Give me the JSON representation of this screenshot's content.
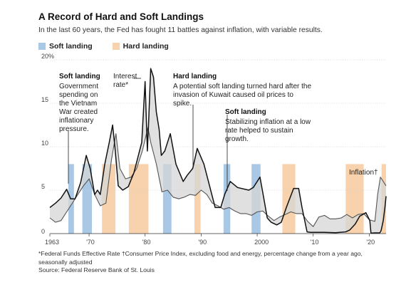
{
  "title": "A Record of Hard and Soft Landings",
  "subtitle": "In the last 60 years, the Fed has fought 11 battles against inflation, with variable results.",
  "legend": {
    "soft": {
      "label": "Soft landing",
      "color": "#a9c8e6"
    },
    "hard": {
      "label": "Hard landing",
      "color": "#f7d2ac"
    }
  },
  "footnote": "*Federal Funds Effective Rate   †Consumer Price Index, excluding food and energy, percentage change from a year ago, seasonally adjusted",
  "source": "Source: Federal Reserve Bank of St. Louis",
  "annotations": {
    "a1": {
      "head": "Soft landing",
      "lines": [
        "Government",
        "spending on",
        "the Vietnam",
        "War created",
        "inflationary",
        "pressure."
      ]
    },
    "a2": {
      "lines": [
        "Interest",
        "rate*"
      ]
    },
    "a3": {
      "head": "Hard landing",
      "lines": [
        "A potential soft landing turned hard after the",
        "invasion of Kuwait caused oil prices to",
        "spike."
      ]
    },
    "a4": {
      "head": "Soft landing",
      "lines": [
        "Stabilizing inflation at a low",
        "rate helped to sustain",
        "growth."
      ]
    },
    "a5": {
      "text": "Inflation†"
    }
  },
  "chart_data": {
    "type": "line",
    "title": "A Record of Hard and Soft Landings",
    "xlim": [
      1963,
      2023
    ],
    "ylim": [
      0,
      20
    ],
    "x_ticks": [
      {
        "v": 1963,
        "label": "1963"
      },
      {
        "v": 1970,
        "label": "'70"
      },
      {
        "v": 1980,
        "label": "'80"
      },
      {
        "v": 1990,
        "label": "'90"
      },
      {
        "v": 2000,
        "label": "2000"
      },
      {
        "v": 2010,
        "label": "'10"
      },
      {
        "v": 2020,
        "label": "'20"
      }
    ],
    "y_ticks": [
      {
        "v": 0,
        "label": "0"
      },
      {
        "v": 5,
        "label": "5"
      },
      {
        "v": 10,
        "label": "10"
      },
      {
        "v": 15,
        "label": "15"
      },
      {
        "v": 20,
        "label": "20%"
      }
    ],
    "grid": true,
    "legend_position": "top-left",
    "shaded_periods": [
      {
        "kind": "soft",
        "start": 1966.3,
        "end": 1967.3
      },
      {
        "kind": "soft",
        "start": 1968.8,
        "end": 1970.5
      },
      {
        "kind": "hard",
        "start": 1972.3,
        "end": 1974.7
      },
      {
        "kind": "hard",
        "start": 1977.1,
        "end": 1980.6
      },
      {
        "kind": "soft",
        "start": 1983.2,
        "end": 1984.7
      },
      {
        "kind": "hard",
        "start": 1988.8,
        "end": 1989.9
      },
      {
        "kind": "soft",
        "start": 1994.0,
        "end": 1995.2
      },
      {
        "kind": "soft",
        "start": 1999.0,
        "end": 2000.6
      },
      {
        "kind": "hard",
        "start": 2004.5,
        "end": 2006.8
      },
      {
        "kind": "hard",
        "start": 2015.8,
        "end": 2019.0
      },
      {
        "kind": "hard",
        "start": 2022.2,
        "end": 2023.0
      }
    ],
    "series": [
      {
        "name": "Interest rate*",
        "color": "#111111",
        "x": [
          1963,
          1964,
          1965,
          1966,
          1966.7,
          1967.5,
          1968.5,
          1969.5,
          1970.2,
          1971,
          1971.5,
          1972,
          1972.8,
          1973.6,
          1974.2,
          1974.6,
          1975.2,
          1976,
          1977,
          1978,
          1978.8,
          1979.4,
          1980.0,
          1980.4,
          1980.6,
          1981.0,
          1981.5,
          1982.0,
          1982.5,
          1982.9,
          1983.5,
          1984.5,
          1985.5,
          1986.8,
          1987.5,
          1988.5,
          1989.3,
          1990.5,
          1991.5,
          1992.5,
          1993.5,
          1994.2,
          1995.2,
          1996.5,
          1998.5,
          1999.3,
          2000.5,
          2001.2,
          2001.8,
          2002.5,
          2003.5,
          2004.3,
          2005.2,
          2006.5,
          2007.4,
          2008.0,
          2008.9,
          2009.5,
          2010.5,
          2012,
          2014,
          2015.8,
          2016.5,
          2017.5,
          2018.3,
          2019.4,
          2020.1,
          2020.3,
          2021,
          2021.9,
          2022.1,
          2022.5,
          2022.8,
          2023.0
        ],
        "y": [
          3.0,
          3.5,
          4.1,
          5.1,
          4.0,
          4.0,
          5.9,
          9.0,
          7.5,
          4.5,
          5.0,
          4.5,
          8.0,
          10.5,
          12.5,
          10.0,
          5.5,
          5.0,
          5.4,
          7.0,
          9.0,
          10.5,
          17.5,
          9.5,
          12.5,
          19.0,
          18.0,
          14.0,
          12.0,
          9.0,
          9.5,
          11.5,
          8.0,
          6.0,
          6.7,
          7.5,
          9.8,
          8.0,
          5.5,
          3.0,
          3.0,
          4.5,
          6.0,
          5.3,
          5.0,
          5.3,
          6.5,
          4.0,
          1.8,
          1.3,
          1.0,
          1.3,
          3.0,
          5.2,
          5.2,
          3.0,
          0.2,
          0.15,
          0.15,
          0.15,
          0.1,
          0.2,
          0.4,
          1.1,
          2.0,
          2.4,
          1.5,
          0.05,
          0.08,
          0.08,
          0.3,
          1.5,
          3.0,
          4.3
        ]
      },
      {
        "name": "Inflation†",
        "color": "#555555",
        "x": [
          1963,
          1964,
          1965,
          1966,
          1967,
          1968,
          1969,
          1970,
          1971,
          1972,
          1973,
          1974,
          1974.8,
          1975.5,
          1976.5,
          1977.5,
          1978.5,
          1979.5,
          1980.5,
          1981.0,
          1982,
          1983,
          1984,
          1985,
          1986,
          1987,
          1988,
          1989,
          1990,
          1991,
          1992,
          1993,
          1994,
          1995,
          1996,
          1997,
          1998,
          1999,
          2000,
          2001,
          2002,
          2003,
          2004,
          2005,
          2006,
          2007,
          2008,
          2009,
          2010,
          2011,
          2012,
          2013,
          2014,
          2015,
          2016,
          2017,
          2018,
          2019,
          2020,
          2021.0,
          2021.5,
          2022.0,
          2022.5,
          2023.0
        ],
        "y": [
          1.8,
          1.3,
          1.5,
          2.5,
          3.5,
          4.5,
          5.5,
          6.3,
          4.5,
          3.2,
          3.5,
          8.5,
          11.5,
          7.5,
          6.3,
          6.5,
          7.5,
          9.5,
          12.2,
          10.5,
          8.0,
          4.8,
          5.0,
          4.2,
          4.0,
          4.2,
          4.5,
          4.4,
          5.0,
          4.5,
          3.5,
          3.2,
          2.8,
          3.0,
          2.6,
          2.3,
          2.3,
          2.1,
          2.5,
          2.6,
          2.0,
          1.5,
          1.9,
          2.2,
          2.5,
          2.3,
          2.3,
          1.4,
          0.8,
          1.9,
          2.1,
          1.7,
          1.7,
          1.8,
          2.2,
          1.8,
          2.2,
          2.3,
          1.6,
          1.4,
          4.5,
          6.5,
          6.0,
          5.5
        ]
      }
    ]
  }
}
